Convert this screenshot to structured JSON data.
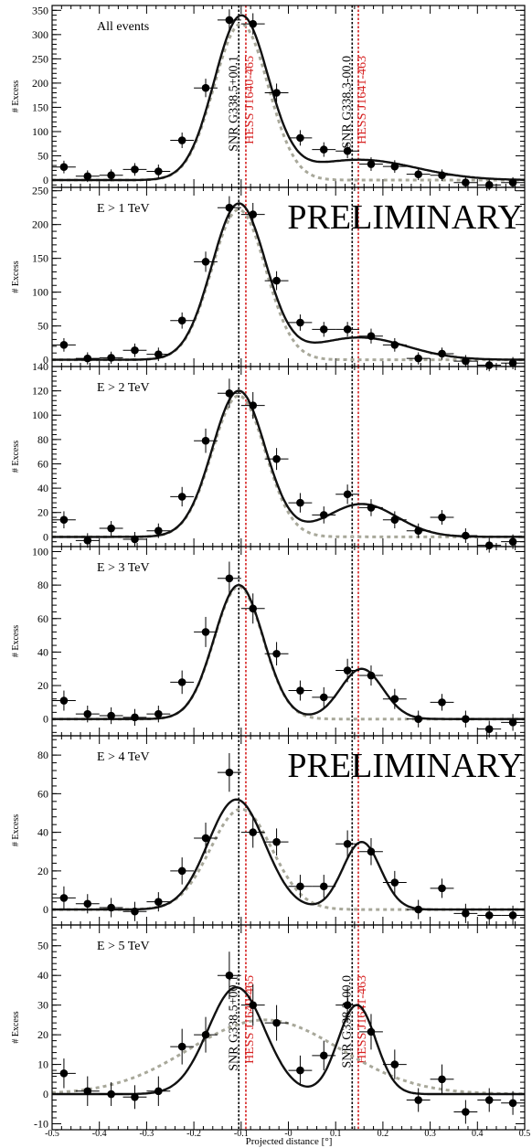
{
  "figure": {
    "xlabel": "Projected distance [°]",
    "xlim": [
      -0.5,
      0.5
    ],
    "x_ticks": [
      -0.5,
      -0.4,
      -0.3,
      -0.2,
      -0.1,
      0.0,
      0.1,
      0.2,
      0.3,
      0.4,
      0.5
    ],
    "x_tick_labels": [
      "-0.5",
      "-0.4",
      "-0.3",
      "-0.2",
      "-0.1",
      "-0",
      "0.1",
      "0.2",
      "0.3",
      "0.4",
      "0.5"
    ],
    "watermark": "PRELIMINARY",
    "vertical_lines": [
      {
        "x": -0.105,
        "label": "SNR G338.5+00.1",
        "color": "#000000",
        "style": "dotted"
      },
      {
        "x": -0.09,
        "label": "HESS J1640-465",
        "color": "#d62020",
        "style": "dotted"
      },
      {
        "x": 0.135,
        "label": "SNR G338.3-00.0",
        "color": "#000000",
        "style": "dotted"
      },
      {
        "x": 0.148,
        "label": "HESS J1641-463",
        "color": "#d62020",
        "style": "dotted"
      }
    ],
    "colors": {
      "data": "#000000",
      "fit": "#111111",
      "component": "#a8a89a",
      "hess": "#d62020"
    }
  },
  "chart_data": [
    {
      "type": "scatter",
      "title": "All events",
      "ylabel": "# Excess",
      "ylim": [
        -15,
        360
      ],
      "yticks": [
        0,
        50,
        100,
        150,
        200,
        250,
        300,
        350
      ],
      "watermark": false,
      "line_labels": true,
      "fit": [
        {
          "A": 335,
          "mu": -0.1,
          "sigma": 0.057
        },
        {
          "A": 42,
          "mu": 0.15,
          "sigma": 0.12
        }
      ],
      "component": {
        "A": 322,
        "mu": -0.1,
        "sigma": 0.057
      },
      "points": [
        {
          "x": -0.475,
          "y": 27,
          "err": 13
        },
        {
          "x": -0.425,
          "y": 8,
          "err": 12
        },
        {
          "x": -0.375,
          "y": 10,
          "err": 12
        },
        {
          "x": -0.325,
          "y": 22,
          "err": 13
        },
        {
          "x": -0.275,
          "y": 18,
          "err": 14
        },
        {
          "x": -0.225,
          "y": 82,
          "err": 16
        },
        {
          "x": -0.175,
          "y": 190,
          "err": 19
        },
        {
          "x": -0.125,
          "y": 330,
          "err": 22
        },
        {
          "x": -0.075,
          "y": 322,
          "err": 22
        },
        {
          "x": -0.025,
          "y": 180,
          "err": 19
        },
        {
          "x": 0.025,
          "y": 87,
          "err": 16
        },
        {
          "x": 0.075,
          "y": 63,
          "err": 15
        },
        {
          "x": 0.125,
          "y": 60,
          "err": 15
        },
        {
          "x": 0.175,
          "y": 33,
          "err": 14
        },
        {
          "x": 0.225,
          "y": 28,
          "err": 13
        },
        {
          "x": 0.275,
          "y": 12,
          "err": 12
        },
        {
          "x": 0.325,
          "y": 10,
          "err": 12
        },
        {
          "x": 0.375,
          "y": -5,
          "err": 11
        },
        {
          "x": 0.425,
          "y": -10,
          "err": 11
        },
        {
          "x": 0.475,
          "y": -5,
          "err": 11
        }
      ]
    },
    {
      "type": "scatter",
      "title": "E > 1 TeV",
      "ylabel": "# Excess",
      "ylim": [
        -10,
        255
      ],
      "yticks": [
        0,
        50,
        100,
        150,
        200,
        250
      ],
      "watermark": true,
      "line_labels": false,
      "fit": [
        {
          "A": 230,
          "mu": -0.105,
          "sigma": 0.057
        },
        {
          "A": 33,
          "mu": 0.15,
          "sigma": 0.1
        }
      ],
      "component": {
        "A": 222,
        "mu": -0.105,
        "sigma": 0.057
      },
      "points": [
        {
          "x": -0.475,
          "y": 22,
          "err": 10
        },
        {
          "x": -0.425,
          "y": 2,
          "err": 9
        },
        {
          "x": -0.375,
          "y": 3,
          "err": 9
        },
        {
          "x": -0.325,
          "y": 14,
          "err": 10
        },
        {
          "x": -0.275,
          "y": 8,
          "err": 10
        },
        {
          "x": -0.225,
          "y": 58,
          "err": 12
        },
        {
          "x": -0.175,
          "y": 145,
          "err": 15
        },
        {
          "x": -0.125,
          "y": 225,
          "err": 17
        },
        {
          "x": -0.075,
          "y": 215,
          "err": 17
        },
        {
          "x": -0.025,
          "y": 117,
          "err": 14
        },
        {
          "x": 0.025,
          "y": 55,
          "err": 12
        },
        {
          "x": 0.075,
          "y": 45,
          "err": 11
        },
        {
          "x": 0.125,
          "y": 45,
          "err": 11
        },
        {
          "x": 0.175,
          "y": 35,
          "err": 11
        },
        {
          "x": 0.225,
          "y": 22,
          "err": 10
        },
        {
          "x": 0.275,
          "y": 2,
          "err": 9
        },
        {
          "x": 0.325,
          "y": 9,
          "err": 9
        },
        {
          "x": 0.375,
          "y": -2,
          "err": 9
        },
        {
          "x": 0.425,
          "y": -8,
          "err": 9
        },
        {
          "x": 0.475,
          "y": -5,
          "err": 9
        }
      ]
    },
    {
      "type": "scatter",
      "title": "E > 2 TeV",
      "ylabel": "# Excess",
      "ylim": [
        -8,
        140
      ],
      "yticks": [
        0,
        20,
        40,
        60,
        80,
        100,
        120,
        140
      ],
      "watermark": false,
      "line_labels": false,
      "fit": [
        {
          "A": 120,
          "mu": -0.105,
          "sigma": 0.056
        },
        {
          "A": 27,
          "mu": 0.155,
          "sigma": 0.075
        }
      ],
      "component": {
        "A": 116,
        "mu": -0.105,
        "sigma": 0.056
      },
      "points": [
        {
          "x": -0.475,
          "y": 14,
          "err": 7
        },
        {
          "x": -0.425,
          "y": -3,
          "err": 6
        },
        {
          "x": -0.375,
          "y": 7,
          "err": 6
        },
        {
          "x": -0.325,
          "y": -2,
          "err": 6
        },
        {
          "x": -0.275,
          "y": 5,
          "err": 6
        },
        {
          "x": -0.225,
          "y": 33,
          "err": 8
        },
        {
          "x": -0.175,
          "y": 79,
          "err": 10
        },
        {
          "x": -0.125,
          "y": 118,
          "err": 12
        },
        {
          "x": -0.075,
          "y": 108,
          "err": 11
        },
        {
          "x": -0.025,
          "y": 64,
          "err": 9
        },
        {
          "x": 0.025,
          "y": 28,
          "err": 8
        },
        {
          "x": 0.075,
          "y": 18,
          "err": 7
        },
        {
          "x": 0.125,
          "y": 35,
          "err": 8
        },
        {
          "x": 0.175,
          "y": 24,
          "err": 7
        },
        {
          "x": 0.225,
          "y": 14,
          "err": 7
        },
        {
          "x": 0.275,
          "y": 5,
          "err": 6
        },
        {
          "x": 0.325,
          "y": 16,
          "err": 6
        },
        {
          "x": 0.375,
          "y": 1,
          "err": 6
        },
        {
          "x": 0.425,
          "y": -7,
          "err": 6
        },
        {
          "x": 0.475,
          "y": -4,
          "err": 6
        }
      ]
    },
    {
      "type": "scatter",
      "title": "E > 3 TeV",
      "ylabel": "# Excess",
      "ylim": [
        -10,
        103
      ],
      "yticks": [
        0,
        20,
        40,
        60,
        80,
        100
      ],
      "watermark": false,
      "line_labels": false,
      "fit": [
        {
          "A": 80,
          "mu": -0.105,
          "sigma": 0.052
        },
        {
          "A": 30,
          "mu": 0.155,
          "sigma": 0.045
        }
      ],
      "component": {
        "A": 79,
        "mu": -0.105,
        "sigma": 0.052
      },
      "points": [
        {
          "x": -0.475,
          "y": 11,
          "err": 6
        },
        {
          "x": -0.425,
          "y": 3,
          "err": 5
        },
        {
          "x": -0.375,
          "y": 2,
          "err": 5
        },
        {
          "x": -0.325,
          "y": 1,
          "err": 5
        },
        {
          "x": -0.275,
          "y": 3,
          "err": 5
        },
        {
          "x": -0.225,
          "y": 22,
          "err": 7
        },
        {
          "x": -0.175,
          "y": 52,
          "err": 9
        },
        {
          "x": -0.125,
          "y": 84,
          "err": 10
        },
        {
          "x": -0.075,
          "y": 66,
          "err": 9
        },
        {
          "x": -0.025,
          "y": 39,
          "err": 7
        },
        {
          "x": 0.025,
          "y": 17,
          "err": 6
        },
        {
          "x": 0.075,
          "y": 13,
          "err": 6
        },
        {
          "x": 0.125,
          "y": 29,
          "err": 7
        },
        {
          "x": 0.175,
          "y": 26,
          "err": 6
        },
        {
          "x": 0.225,
          "y": 12,
          "err": 6
        },
        {
          "x": 0.275,
          "y": 0,
          "err": 5
        },
        {
          "x": 0.325,
          "y": 10,
          "err": 5
        },
        {
          "x": 0.375,
          "y": 0,
          "err": 5
        },
        {
          "x": 0.425,
          "y": -6,
          "err": 5
        },
        {
          "x": 0.475,
          "y": -2,
          "err": 5
        }
      ]
    },
    {
      "type": "scatter",
      "title": "E > 4 TeV",
      "ylabel": "# Excess",
      "ylim": [
        -8,
        90
      ],
      "yticks": [
        0,
        20,
        40,
        60,
        80
      ],
      "watermark": true,
      "line_labels": false,
      "fit": [
        {
          "A": 57,
          "mu": -0.11,
          "sigma": 0.06
        },
        {
          "A": 35,
          "mu": 0.155,
          "sigma": 0.04
        }
      ],
      "component": {
        "A": 52,
        "mu": -0.1,
        "sigma": 0.065
      },
      "points": [
        {
          "x": -0.475,
          "y": 6,
          "err": 6
        },
        {
          "x": -0.425,
          "y": 3,
          "err": 5
        },
        {
          "x": -0.375,
          "y": 1,
          "err": 5
        },
        {
          "x": -0.325,
          "y": -1,
          "err": 5
        },
        {
          "x": -0.275,
          "y": 4,
          "err": 5
        },
        {
          "x": -0.225,
          "y": 20,
          "err": 7
        },
        {
          "x": -0.175,
          "y": 37,
          "err": 8
        },
        {
          "x": -0.125,
          "y": 71,
          "err": 10
        },
        {
          "x": -0.075,
          "y": 40,
          "err": 8
        },
        {
          "x": -0.025,
          "y": 35,
          "err": 7
        },
        {
          "x": 0.025,
          "y": 12,
          "err": 6
        },
        {
          "x": 0.075,
          "y": 12,
          "err": 6
        },
        {
          "x": 0.125,
          "y": 34,
          "err": 7
        },
        {
          "x": 0.175,
          "y": 30,
          "err": 7
        },
        {
          "x": 0.225,
          "y": 14,
          "err": 6
        },
        {
          "x": 0.275,
          "y": 0,
          "err": 5
        },
        {
          "x": 0.325,
          "y": 11,
          "err": 5
        },
        {
          "x": 0.375,
          "y": -2,
          "err": 5
        },
        {
          "x": 0.425,
          "y": -3,
          "err": 5
        },
        {
          "x": 0.475,
          "y": -3,
          "err": 5
        }
      ]
    },
    {
      "type": "scatter",
      "title": "E > 5 TeV",
      "ylabel": "# Excess",
      "ylim": [
        -12,
        57
      ],
      "yticks": [
        -10,
        0,
        10,
        20,
        30,
        40,
        50
      ],
      "watermark": false,
      "line_labels": true,
      "fit": [
        {
          "A": 36,
          "mu": -0.11,
          "sigma": 0.06
        },
        {
          "A": 30,
          "mu": 0.145,
          "sigma": 0.04
        }
      ],
      "component": {
        "A": 25,
        "mu": -0.05,
        "sigma": 0.16
      },
      "points": [
        {
          "x": -0.475,
          "y": 7,
          "err": 5
        },
        {
          "x": -0.425,
          "y": 1,
          "err": 5
        },
        {
          "x": -0.375,
          "y": 0,
          "err": 4
        },
        {
          "x": -0.325,
          "y": -1,
          "err": 4
        },
        {
          "x": -0.275,
          "y": 1,
          "err": 5
        },
        {
          "x": -0.225,
          "y": 16,
          "err": 6
        },
        {
          "x": -0.175,
          "y": 20,
          "err": 6
        },
        {
          "x": -0.125,
          "y": 40,
          "err": 8
        },
        {
          "x": -0.075,
          "y": 30,
          "err": 7
        },
        {
          "x": -0.025,
          "y": 24,
          "err": 6
        },
        {
          "x": 0.025,
          "y": 8,
          "err": 5
        },
        {
          "x": 0.075,
          "y": 13,
          "err": 5
        },
        {
          "x": 0.125,
          "y": 30,
          "err": 6
        },
        {
          "x": 0.175,
          "y": 21,
          "err": 6
        },
        {
          "x": 0.225,
          "y": 10,
          "err": 5
        },
        {
          "x": 0.275,
          "y": -2,
          "err": 4
        },
        {
          "x": 0.325,
          "y": 5,
          "err": 5
        },
        {
          "x": 0.375,
          "y": -6,
          "err": 4
        },
        {
          "x": 0.425,
          "y": -2,
          "err": 4
        },
        {
          "x": 0.475,
          "y": -3,
          "err": 4
        }
      ]
    }
  ]
}
